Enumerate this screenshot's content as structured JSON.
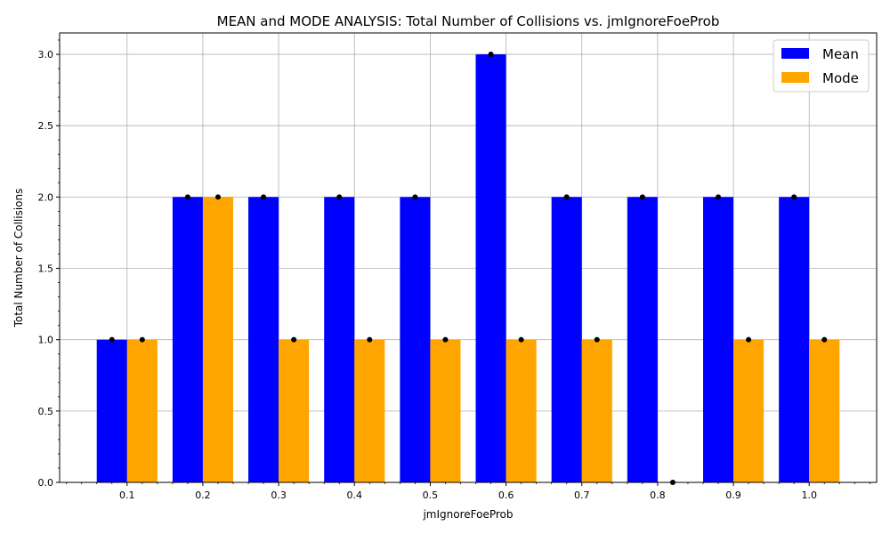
{
  "chart_data": {
    "type": "bar",
    "title": "MEAN and MODE ANALYSIS: Total Number of Collisions vs. jmIgnoreFoeProb",
    "xlabel": "jmIgnoreFoeProb",
    "ylabel": "Total Number of Collisions",
    "categories": [
      "0.1",
      "0.2",
      "0.3",
      "0.4",
      "0.5",
      "0.6",
      "0.7",
      "0.8",
      "0.9",
      "1.0"
    ],
    "series": [
      {
        "name": "Mean",
        "color": "#0000ff",
        "values": [
          1,
          2,
          2,
          2,
          2,
          3,
          2,
          2,
          2,
          2
        ]
      },
      {
        "name": "Mode",
        "color": "#ffa500",
        "values": [
          1,
          2,
          1,
          1,
          1,
          1,
          1,
          0,
          1,
          1
        ]
      }
    ],
    "ylim": [
      0,
      3.15
    ],
    "yticks": [
      "0.0",
      "0.5",
      "1.0",
      "1.5",
      "2.0",
      "2.5",
      "3.0"
    ],
    "grid": true,
    "legend_position": "top-right",
    "marker_color": "#000000"
  }
}
